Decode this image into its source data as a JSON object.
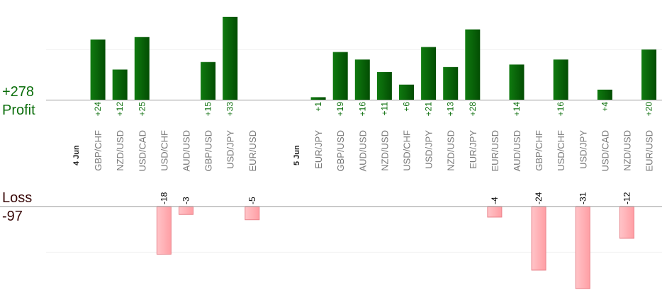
{
  "summary": {
    "profit_total": "+278",
    "profit_label": "Profit",
    "loss_label": "Loss",
    "loss_total": "-97"
  },
  "colors": {
    "profit_bar": "#0b6e0b",
    "profit_text": "#0b6e0b",
    "loss_bar": "#ffb3b8",
    "loss_text": "#000000",
    "category_text": "#777777",
    "axis": "#999999",
    "grid": "#eeeeee"
  },
  "chart_data": {
    "type": "bar",
    "title": "",
    "grid": true,
    "profit_axis_range": [
      0,
      33
    ],
    "loss_axis_range": [
      0,
      31
    ],
    "entries": [
      {
        "kind": "date",
        "label": "4 Jun"
      },
      {
        "kind": "trade",
        "pair": "GBP/CHF",
        "value": 24,
        "label": "+24"
      },
      {
        "kind": "trade",
        "pair": "NZD/USD",
        "value": 12,
        "label": "+12"
      },
      {
        "kind": "trade",
        "pair": "USD/CAD",
        "value": 25,
        "label": "+25"
      },
      {
        "kind": "trade",
        "pair": "USD/CHF",
        "value": -18,
        "label": "-18"
      },
      {
        "kind": "trade",
        "pair": "AUD/USD",
        "value": -3,
        "label": "-3"
      },
      {
        "kind": "trade",
        "pair": "GBP/USD",
        "value": 15,
        "label": "+15"
      },
      {
        "kind": "trade",
        "pair": "USD/JPY",
        "value": 33,
        "label": "+33"
      },
      {
        "kind": "trade",
        "pair": "EUR/USD",
        "value": -5,
        "label": "-5"
      },
      {
        "kind": "gap"
      },
      {
        "kind": "date",
        "label": "5 Jun"
      },
      {
        "kind": "trade",
        "pair": "EUR/JPY",
        "value": 1,
        "label": "+1"
      },
      {
        "kind": "trade",
        "pair": "GBP/USD",
        "value": 19,
        "label": "+19"
      },
      {
        "kind": "trade",
        "pair": "AUD/USD",
        "value": 16,
        "label": "+16"
      },
      {
        "kind": "trade",
        "pair": "NZD/USD",
        "value": 11,
        "label": "+11"
      },
      {
        "kind": "trade",
        "pair": "USD/CHF",
        "value": 6,
        "label": "+6"
      },
      {
        "kind": "trade",
        "pair": "USD/JPY",
        "value": 21,
        "label": "+21"
      },
      {
        "kind": "trade",
        "pair": "NZD/USD",
        "value": 13,
        "label": "+13"
      },
      {
        "kind": "trade",
        "pair": "EUR/JPY",
        "value": 28,
        "label": "+28"
      },
      {
        "kind": "trade",
        "pair": "EUR/USD",
        "value": -4,
        "label": "-4"
      },
      {
        "kind": "trade",
        "pair": "AUD/USD",
        "value": 14,
        "label": "+14"
      },
      {
        "kind": "trade",
        "pair": "GBP/CHF",
        "value": -24,
        "label": "-24"
      },
      {
        "kind": "trade",
        "pair": "USD/CHF",
        "value": 16,
        "label": "+16"
      },
      {
        "kind": "trade",
        "pair": "USD/JPY",
        "value": -31,
        "label": "-31"
      },
      {
        "kind": "trade",
        "pair": "USD/CAD",
        "value": 4,
        "label": "+4"
      },
      {
        "kind": "trade",
        "pair": "NZD/USD",
        "value": -12,
        "label": "-12"
      },
      {
        "kind": "trade",
        "pair": "EUR/USD",
        "value": 20,
        "label": "+20"
      }
    ]
  }
}
